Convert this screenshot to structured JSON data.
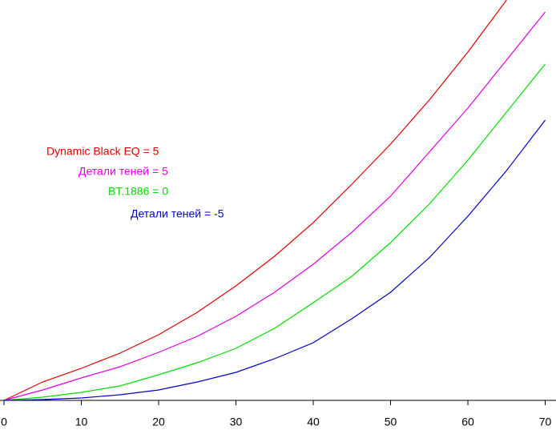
{
  "chart_data": {
    "type": "line",
    "x": [
      0,
      5,
      10,
      15,
      20,
      25,
      30,
      35,
      40,
      45,
      50,
      55,
      60,
      65,
      70
    ],
    "series": [
      {
        "name": "Dynamic Black EQ = 5",
        "color": "#e00000",
        "values": [
          0,
          4.6,
          8,
          11.8,
          16.4,
          22,
          28.6,
          36,
          44.4,
          54,
          64,
          75,
          87,
          100,
          null
        ]
      },
      {
        "name": "Детали теней = 5",
        "color": "#e000e0",
        "values": [
          0,
          2.6,
          5.6,
          8.4,
          12,
          16,
          21,
          27,
          34,
          42,
          51,
          62,
          73,
          85,
          97
        ]
      },
      {
        "name": "BT.1886 = 0",
        "color": "#00dd00",
        "values": [
          0,
          0.8,
          2,
          3.6,
          6.4,
          9.4,
          13,
          18,
          24.4,
          31,
          39.4,
          49,
          60,
          72,
          84
        ]
      },
      {
        "name": "Детали теней = -5",
        "color": "#0000c8",
        "values": [
          0,
          0.2,
          0.6,
          1.4,
          2.6,
          4.6,
          7,
          10.4,
          14.4,
          20.4,
          27,
          35.6,
          46,
          57.4,
          70
        ]
      }
    ],
    "xlim": [
      0,
      71.5
    ],
    "ylim": [
      0,
      100
    ],
    "xticks": [
      0,
      10,
      20,
      30,
      40,
      50,
      60,
      70
    ]
  }
}
